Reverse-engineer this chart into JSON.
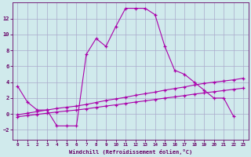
{
  "xlabel": "Windchill (Refroidissement éolien,°C)",
  "background_color": "#d0eaec",
  "grid_color": "#aaaacc",
  "line_color": "#aa00aa",
  "xlim": [
    -0.5,
    23.5
  ],
  "ylim": [
    -3.2,
    14.0
  ],
  "yticks": [
    -2,
    0,
    2,
    4,
    6,
    8,
    10,
    12
  ],
  "xticks": [
    0,
    1,
    2,
    3,
    4,
    5,
    6,
    7,
    8,
    9,
    10,
    11,
    12,
    13,
    14,
    15,
    16,
    17,
    18,
    19,
    20,
    21,
    22,
    23
  ],
  "series1_x": [
    0,
    1,
    2,
    3,
    4,
    5,
    6,
    7,
    8,
    9,
    10,
    11,
    12,
    13,
    14,
    15,
    16,
    17,
    18,
    19,
    20,
    21,
    22
  ],
  "series1_y": [
    3.5,
    1.5,
    0.5,
    0.5,
    -1.5,
    -1.5,
    -1.5,
    7.5,
    9.5,
    8.5,
    11.0,
    13.3,
    13.3,
    13.3,
    12.5,
    8.5,
    5.5,
    5.0,
    4.0,
    3.0,
    2.0,
    2.0,
    -0.3
  ],
  "series2_x": [
    0,
    1,
    2,
    3,
    4,
    5,
    6,
    7,
    8,
    9,
    10,
    11,
    12,
    13,
    14,
    15,
    16,
    17,
    18,
    19,
    20,
    21,
    22,
    23
  ],
  "series2_y": [
    -0.1,
    0.1,
    0.3,
    0.5,
    0.7,
    0.85,
    1.0,
    1.2,
    1.45,
    1.7,
    1.9,
    2.1,
    2.35,
    2.55,
    2.75,
    3.0,
    3.2,
    3.4,
    3.65,
    3.85,
    4.0,
    4.15,
    4.3,
    4.5
  ],
  "series3_x": [
    0,
    1,
    2,
    3,
    4,
    5,
    6,
    7,
    8,
    9,
    10,
    11,
    12,
    13,
    14,
    15,
    16,
    17,
    18,
    19,
    20,
    21,
    22,
    23
  ],
  "series3_y": [
    -0.35,
    -0.2,
    -0.05,
    0.1,
    0.25,
    0.38,
    0.5,
    0.65,
    0.82,
    1.0,
    1.15,
    1.32,
    1.5,
    1.65,
    1.82,
    2.0,
    2.15,
    2.32,
    2.5,
    2.65,
    2.8,
    2.95,
    3.1,
    3.25
  ]
}
